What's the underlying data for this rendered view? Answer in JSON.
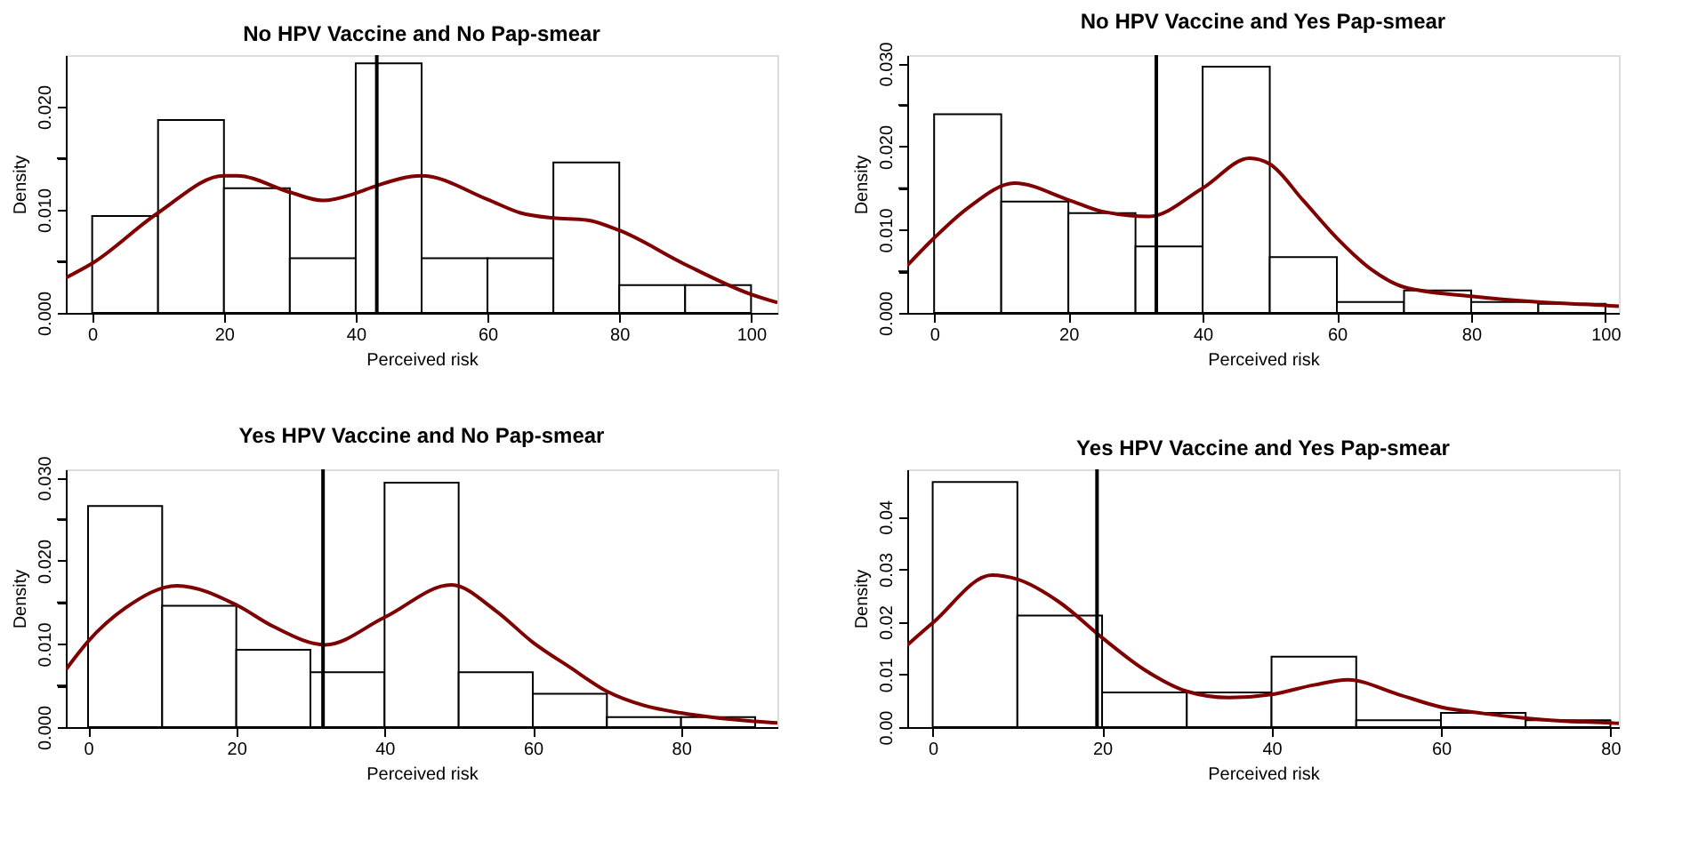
{
  "chart_data": [
    {
      "type": "histogram",
      "title": "No HPV Vaccine and No Pap-smear",
      "xlabel": "Perceived risk",
      "ylabel": "Density",
      "bins": [
        0,
        10,
        20,
        30,
        40,
        50,
        60,
        70,
        80,
        90,
        100
      ],
      "values": [
        0.0094,
        0.0187,
        0.0121,
        0.0053,
        0.0242,
        0.0053,
        0.0053,
        0.0146,
        0.0027,
        0.0027
      ],
      "color": "#ffffff",
      "series": [
        {
          "type": "line",
          "color": "#7f0000",
          "x": [
            -4,
            0,
            10,
            20,
            22,
            30,
            35,
            40,
            43,
            50,
            60,
            65,
            70,
            75,
            80,
            90,
            100,
            104
          ],
          "values": [
            0.0034,
            0.0048,
            0.0097,
            0.0133,
            0.0133,
            0.0117,
            0.0109,
            0.0116,
            0.0123,
            0.0133,
            0.011,
            0.0097,
            0.0092,
            0.009,
            0.008,
            0.0047,
            0.0018,
            0.001
          ]
        }
      ],
      "ref_lines": [
        {
          "axis": "x",
          "value": 43.2,
          "color": "#000000"
        }
      ],
      "xlim": [
        -4,
        104
      ],
      "xticks": [
        0,
        20,
        40,
        60,
        80,
        100
      ],
      "ylim": [
        0,
        0.025
      ],
      "yticks": [
        {
          "value": 0,
          "label": "0.000"
        },
        {
          "value": 0.005,
          "label": null
        },
        {
          "value": 0.01,
          "label": "0.010"
        },
        {
          "value": 0.015,
          "label": null
        },
        {
          "value": 0.02,
          "label": "0.020"
        }
      ],
      "grid": false
    },
    {
      "type": "histogram",
      "title": "No HPV Vaccine and Yes Pap-smear",
      "xlabel": "Perceived risk",
      "ylabel": "Density",
      "bins": [
        0,
        10,
        20,
        30,
        40,
        50,
        60,
        70,
        80,
        90,
        100
      ],
      "values": [
        0.0239,
        0.0134,
        0.012,
        0.008,
        0.0296,
        0.0067,
        0.0013,
        0.0027,
        0.0013,
        0.0011
      ],
      "color": "#ffffff",
      "series": [
        {
          "type": "line",
          "color": "#7f0000",
          "x": [
            -4,
            0,
            5,
            12,
            20,
            25,
            32,
            40,
            47,
            50,
            55,
            60,
            65,
            70,
            80,
            90,
            100,
            102
          ],
          "values": [
            0.0057,
            0.009,
            0.0126,
            0.0156,
            0.0136,
            0.0122,
            0.0116,
            0.015,
            0.0186,
            0.0179,
            0.0135,
            0.009,
            0.0053,
            0.0031,
            0.002,
            0.0013,
            0.0009,
            0.0008
          ]
        }
      ],
      "ref_lines": [
        {
          "axis": "x",
          "value": 33.1,
          "color": "#000000"
        }
      ],
      "xlim": [
        -4,
        102
      ],
      "xticks": [
        0,
        20,
        40,
        60,
        80,
        100
      ],
      "ylim": [
        0,
        0.031
      ],
      "yticks": [
        {
          "value": 0,
          "label": "0.000"
        },
        {
          "value": 0.005,
          "label": null
        },
        {
          "value": 0.01,
          "label": "0.010"
        },
        {
          "value": 0.015,
          "label": null
        },
        {
          "value": 0.02,
          "label": "0.020"
        },
        {
          "value": 0.025,
          "label": null
        },
        {
          "value": 0.03,
          "label": "0.030"
        }
      ],
      "grid": false
    },
    {
      "type": "histogram",
      "title": "Yes HPV Vaccine and No Pap-smear",
      "xlabel": "Perceived risk",
      "ylabel": "Density",
      "bins": [
        0,
        10,
        20,
        30,
        40,
        50,
        60,
        70,
        80,
        90
      ],
      "values": [
        0.0266,
        0.0146,
        0.0093,
        0.0066,
        0.0294,
        0.0066,
        0.004,
        0.0012,
        0.0012
      ],
      "color": "#ffffff",
      "series": [
        {
          "type": "line",
          "color": "#7f0000",
          "x": [
            -3,
            0,
            5,
            12,
            20,
            25,
            32,
            40,
            49,
            55,
            60,
            65,
            70,
            75,
            80,
            85,
            90,
            93
          ],
          "values": [
            0.0069,
            0.0103,
            0.0143,
            0.017,
            0.0147,
            0.0121,
            0.0099,
            0.0132,
            0.0171,
            0.014,
            0.0102,
            0.0072,
            0.0043,
            0.0026,
            0.0017,
            0.0011,
            0.0007,
            0.0005
          ]
        }
      ],
      "ref_lines": [
        {
          "axis": "x",
          "value": 31.7,
          "color": "#000000"
        }
      ],
      "xlim": [
        -3,
        93
      ],
      "xticks": [
        0,
        20,
        40,
        60,
        80
      ],
      "ylim": [
        0,
        0.031
      ],
      "yticks": [
        {
          "value": 0,
          "label": "0.000"
        },
        {
          "value": 0.005,
          "label": null
        },
        {
          "value": 0.01,
          "label": "0.010"
        },
        {
          "value": 0.015,
          "label": null
        },
        {
          "value": 0.02,
          "label": "0.020"
        },
        {
          "value": 0.025,
          "label": null
        },
        {
          "value": 0.03,
          "label": "0.030"
        }
      ],
      "grid": false
    },
    {
      "type": "histogram",
      "title": "Yes HPV Vaccine and Yes Pap-smear",
      "xlabel": "Perceived risk",
      "ylabel": "Density",
      "bins": [
        0,
        10,
        20,
        30,
        40,
        50,
        60,
        70,
        80
      ],
      "values": [
        0.0466,
        0.0212,
        0.0066,
        0.0066,
        0.0134,
        0.0013,
        0.0027,
        0.0013
      ],
      "color": "#ffffff",
      "series": [
        {
          "type": "line",
          "color": "#7f0000",
          "x": [
            -3,
            0,
            7,
            10,
            15,
            20,
            25,
            30,
            35,
            40,
            45,
            49,
            55,
            60,
            65,
            70,
            75,
            80,
            81
          ],
          "values": [
            0.0156,
            0.0198,
            0.0289,
            0.0281,
            0.0237,
            0.017,
            0.0109,
            0.0068,
            0.0056,
            0.0062,
            0.008,
            0.009,
            0.0062,
            0.0038,
            0.0026,
            0.0017,
            0.0011,
            0.0008,
            0.0007
          ]
        }
      ],
      "ref_lines": [
        {
          "axis": "x",
          "value": 19.4,
          "color": "#000000"
        }
      ],
      "xlim": [
        -3,
        81
      ],
      "xticks": [
        0,
        20,
        40,
        60,
        80
      ],
      "ylim": [
        0,
        0.049
      ],
      "yticks": [
        {
          "value": 0,
          "label": "0.00"
        },
        {
          "value": 0.01,
          "label": "0.01"
        },
        {
          "value": 0.02,
          "label": "0.02"
        },
        {
          "value": 0.03,
          "label": "0.03"
        },
        {
          "value": 0.04,
          "label": "0.04"
        }
      ],
      "grid": false
    }
  ]
}
